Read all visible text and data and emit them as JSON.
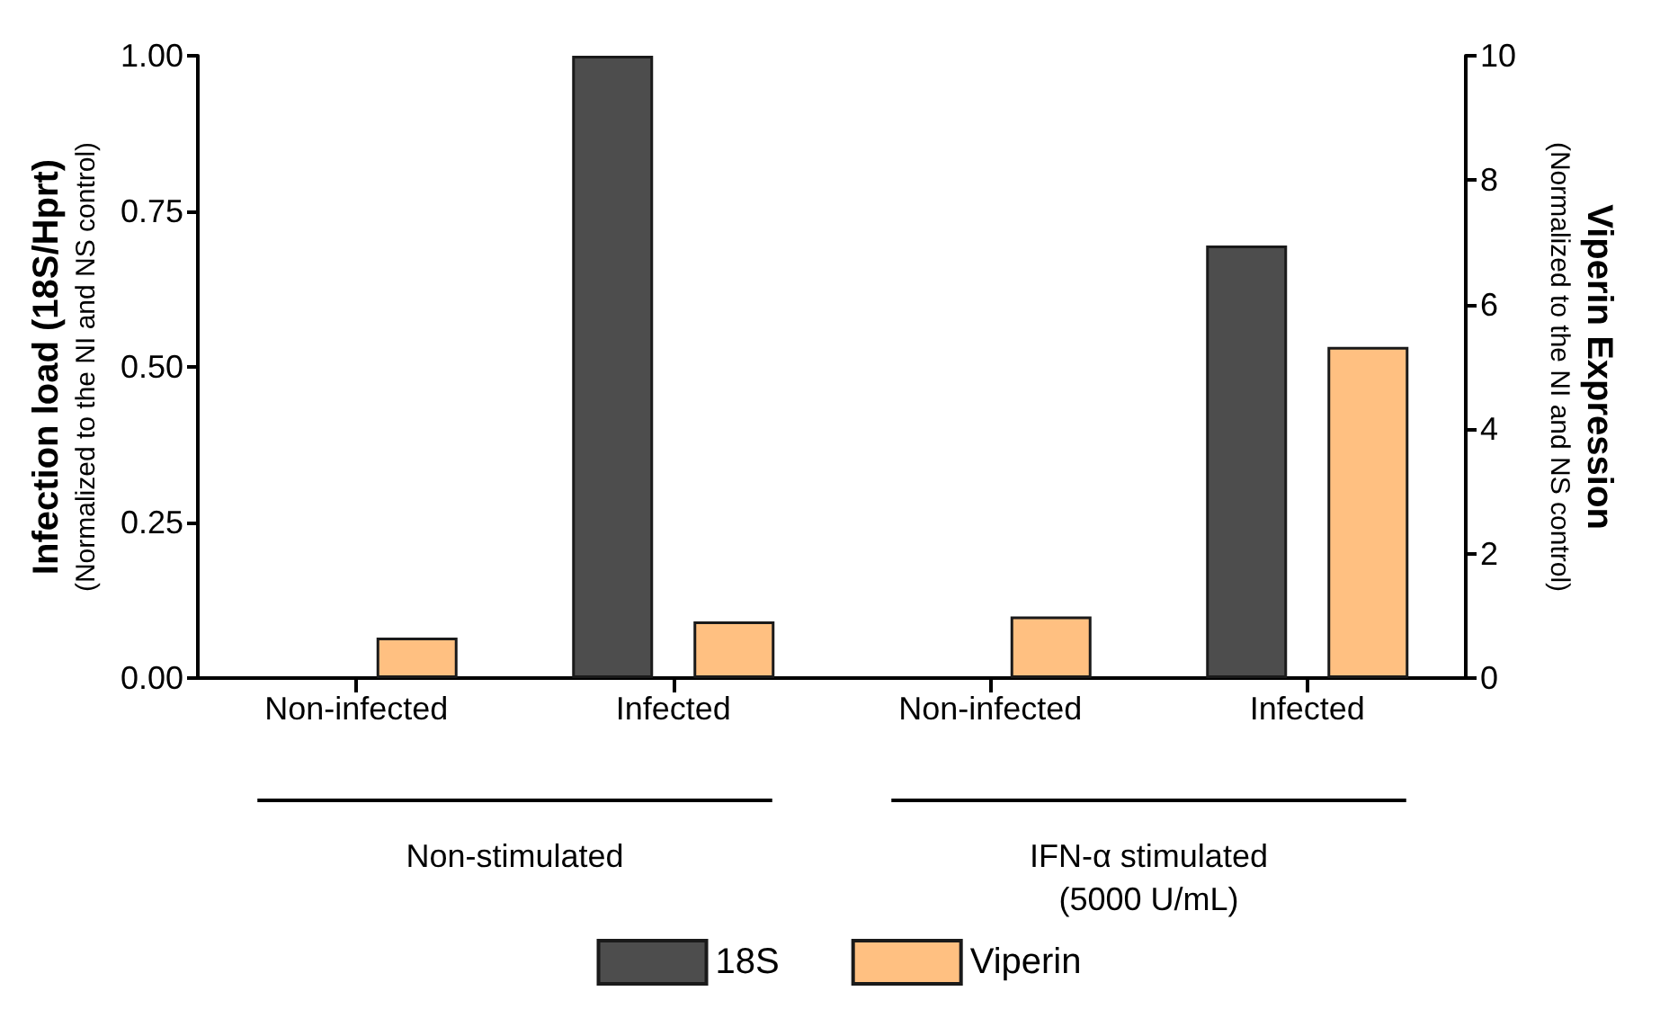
{
  "chart_data": {
    "type": "bar",
    "categories": [
      "Non-infected",
      "Infected",
      "Non-infected",
      "Infected"
    ],
    "series": [
      {
        "name": "18S",
        "color": "#4d4d4d",
        "values": [
          null,
          1.0,
          null,
          0.695
        ]
      },
      {
        "name": "Viperin",
        "color": "#ffc081",
        "values": [
          0.65,
          0.91,
          0.99,
          5.32
        ],
        "axis": "y2"
      }
    ],
    "ylabel": "Infection load (18S/Hprt)\n(Normalized to the NI and NS control)",
    "y2label": "Viperin Expression\n(Normalized to the NI and NS control)",
    "ylim": [
      0,
      1
    ],
    "yticks": [
      {
        "value": 0,
        "label": "0.00"
      },
      0.25,
      {
        "value": 0.5,
        "label": "0.50"
      },
      0.75,
      {
        "value": 1,
        "label": "1.00"
      }
    ],
    "y2lim": [
      0,
      10
    ],
    "y2ticks": [
      0,
      2,
      4,
      6,
      8,
      10
    ],
    "annotations": [
      "Non-stimulated",
      "IFN-α stimulated\n(5000 U/mL)"
    ],
    "legend": "bottom",
    "grid": false
  }
}
